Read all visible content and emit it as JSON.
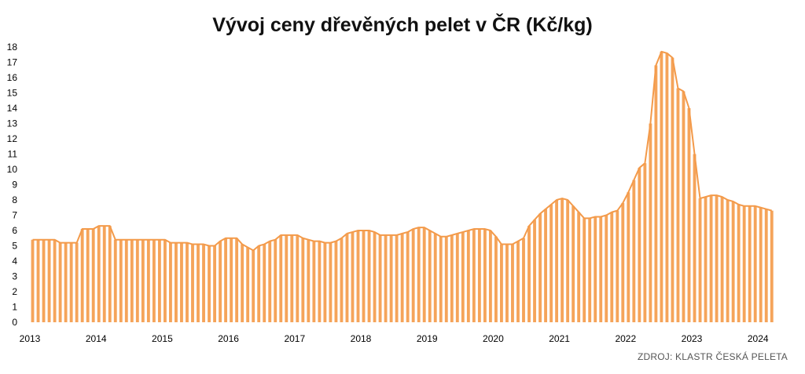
{
  "chart_data": {
    "type": "bar",
    "title": "Vývoj ceny dřevěných pelet v ČR (Kč/kg)",
    "source": "ZDROJ: KLASTR ČESKÁ PELETA",
    "xlabel": "",
    "ylabel": "",
    "ylim": [
      0,
      18
    ],
    "yticks": [
      "0",
      "1",
      "2",
      "3",
      "4",
      "5",
      "6",
      "7",
      "8",
      "9",
      "10",
      "11",
      "12",
      "13",
      "14",
      "15",
      "16",
      "17",
      "18"
    ],
    "xticks": [
      "2013",
      "2014",
      "2015",
      "2016",
      "2017",
      "2018",
      "2019",
      "2020",
      "2021",
      "2022",
      "2023",
      "2024"
    ],
    "grid": false,
    "legend": "none",
    "overlay": "line",
    "color": "#F5A45A",
    "line_color": "#F39A4A",
    "x_start": "2013-01",
    "frequency": "monthly",
    "values": [
      5.4,
      5.4,
      5.4,
      5.4,
      5.4,
      5.2,
      5.2,
      5.2,
      5.2,
      6.1,
      6.1,
      6.1,
      6.3,
      6.3,
      6.3,
      5.4,
      5.4,
      5.4,
      5.4,
      5.4,
      5.4,
      5.4,
      5.4,
      5.4,
      5.4,
      5.2,
      5.2,
      5.2,
      5.2,
      5.1,
      5.1,
      5.1,
      5.0,
      5.0,
      5.3,
      5.5,
      5.5,
      5.5,
      5.1,
      4.9,
      4.7,
      5.0,
      5.1,
      5.3,
      5.4,
      5.7,
      5.7,
      5.7,
      5.7,
      5.5,
      5.4,
      5.3,
      5.3,
      5.2,
      5.2,
      5.3,
      5.5,
      5.8,
      5.9,
      6.0,
      6.0,
      6.0,
      5.9,
      5.7,
      5.7,
      5.7,
      5.7,
      5.8,
      5.9,
      6.1,
      6.2,
      6.2,
      6.0,
      5.8,
      5.6,
      5.6,
      5.7,
      5.8,
      5.9,
      6.0,
      6.1,
      6.1,
      6.1,
      6.0,
      5.6,
      5.1,
      5.1,
      5.1,
      5.3,
      5.5,
      6.3,
      6.7,
      7.1,
      7.4,
      7.7,
      8.0,
      8.1,
      8.0,
      7.6,
      7.2,
      6.8,
      6.8,
      6.9,
      6.9,
      7.0,
      7.2,
      7.3,
      7.8,
      8.5,
      9.3,
      10.1,
      10.4,
      13.0,
      16.8,
      17.7,
      17.6,
      17.3,
      15.3,
      15.1,
      14.0,
      11.0,
      8.1,
      8.2,
      8.3,
      8.3,
      8.2,
      8.0,
      7.9,
      7.7,
      7.6,
      7.6,
      7.6,
      7.5,
      7.4,
      7.3
    ]
  }
}
